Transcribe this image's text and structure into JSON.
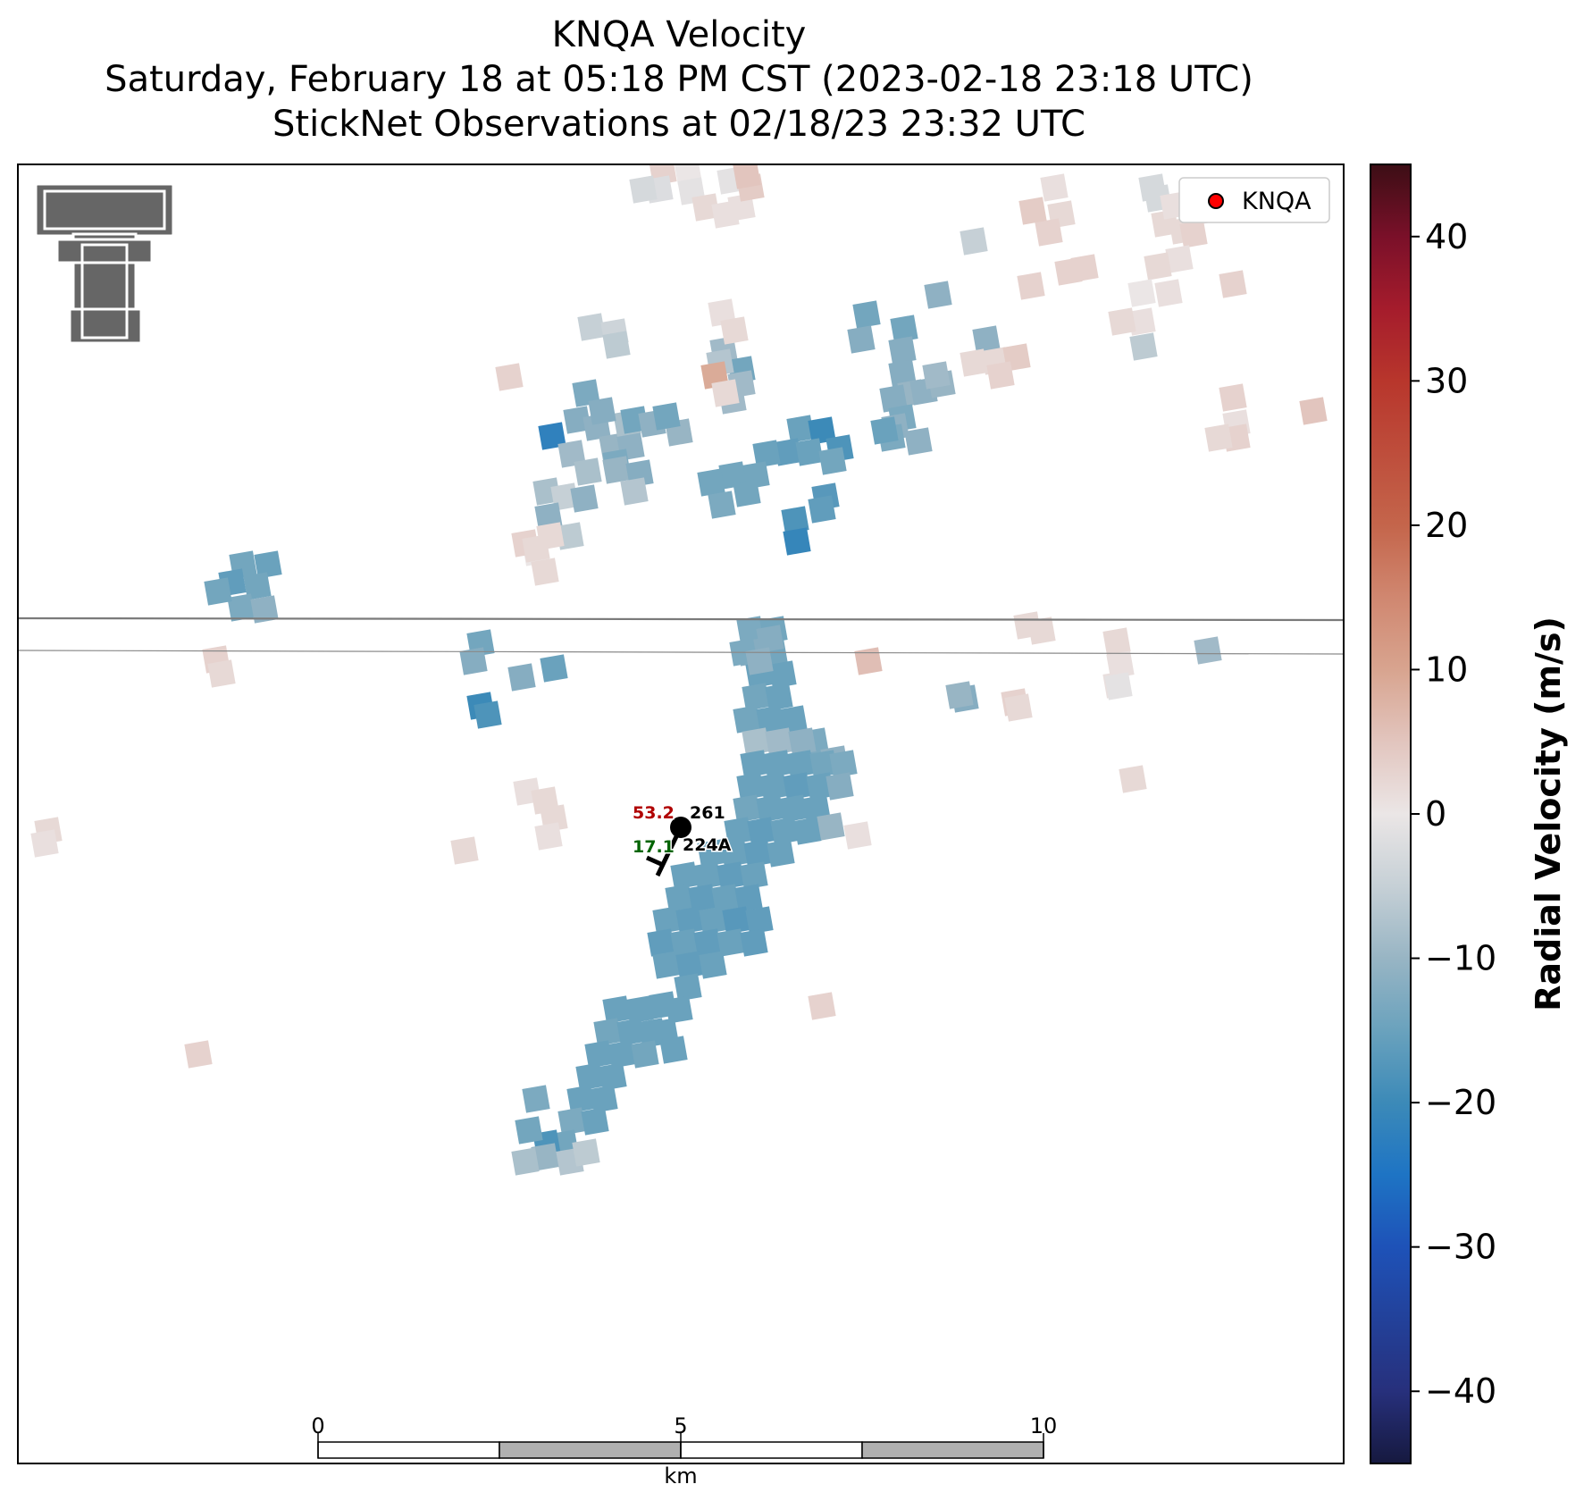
{
  "title": {
    "line1": "KNQA Velocity",
    "line2": "Saturday, February 18 at 05:18 PM CST (2023-02-18 23:18 UTC)",
    "line3": "StickNet Observations at 02/18/23 23:32 UTC"
  },
  "legend": {
    "label": "KNQA",
    "marker_color": "#ff0000",
    "placement": "top-right"
  },
  "logo": {
    "name": "texas-tech-double-t-logo",
    "color": "#666666"
  },
  "station": {
    "temperature": "53.2",
    "dewpoint": "17.1",
    "pressure": "261",
    "id": "224A",
    "temperature_color": "#b00000",
    "dewpoint_color": "#006400"
  },
  "scale_bar": {
    "ticks": [
      "0",
      "5",
      "10"
    ],
    "unit": "km",
    "segment_colors": [
      "#ffffff",
      "#b0b0b0",
      "#ffffff",
      "#b0b0b0"
    ]
  },
  "colorbar": {
    "label": "Radial Velocity (m/s)",
    "vmin": -45,
    "vmax": 45,
    "ticks": [
      40,
      30,
      20,
      10,
      0,
      -10,
      -20,
      -30,
      -40
    ],
    "tick_labels": [
      "40",
      "30",
      "20",
      "10",
      "0",
      "−10",
      "−20",
      "−30",
      "−40"
    ],
    "stops": [
      {
        "v": -45,
        "c": "#16193f"
      },
      {
        "v": -40,
        "c": "#27307c"
      },
      {
        "v": -30,
        "c": "#1e52b8"
      },
      {
        "v": -25,
        "c": "#1e74c4"
      },
      {
        "v": -20,
        "c": "#3c8ab8"
      },
      {
        "v": -15,
        "c": "#6aa2bd"
      },
      {
        "v": -10,
        "c": "#98b5c4"
      },
      {
        "v": -5,
        "c": "#c6d0d6"
      },
      {
        "v": 0,
        "c": "#ebe6e6"
      },
      {
        "v": 5,
        "c": "#e2c5be"
      },
      {
        "v": 10,
        "c": "#d8a48f"
      },
      {
        "v": 15,
        "c": "#d08770"
      },
      {
        "v": 20,
        "c": "#c4654b"
      },
      {
        "v": 30,
        "c": "#b8362c"
      },
      {
        "v": 35,
        "c": "#a51c2c"
      },
      {
        "v": 40,
        "c": "#7a1029"
      },
      {
        "v": 45,
        "c": "#3c0e15"
      }
    ]
  }
}
